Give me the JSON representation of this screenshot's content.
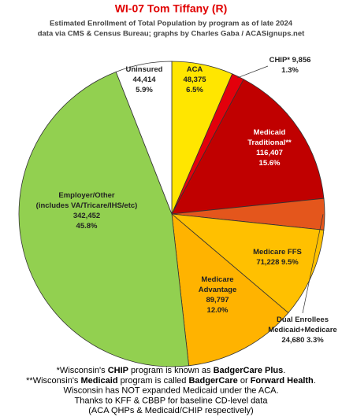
{
  "chart_data": {
    "type": "pie",
    "title": "WI-07 Tom Tiffany (R)",
    "subtitle": [
      "Estimated Enrollment of Total Population by program as of late 2024",
      "data via CMS & Census Bureau; graphs by Charles Gaba / ACASignups.net"
    ],
    "categories": [
      [
        "ACA"
      ],
      [
        "CHIP*"
      ],
      [
        "Medicaid",
        "Traditional**"
      ],
      [
        "Dual Enrollees",
        "Medicaid+Medicare"
      ],
      [
        "Medicare FFS"
      ],
      [
        "Medicare",
        "Advantage"
      ],
      [
        "Employer/Other",
        "(includes VA/Tricare/IHS/etc)"
      ],
      [
        "Uninsured"
      ]
    ],
    "values": [
      48375,
      9856,
      116407,
      24680,
      71228,
      89797,
      342452,
      44414
    ],
    "value_labels": [
      "48,375",
      "9,856",
      "116,407",
      "24,680",
      "71,228",
      "89,797",
      "342,452",
      "44,414"
    ],
    "percent_labels": [
      "6.5%",
      "1.3%",
      "15.6%",
      "3.3%",
      "9.5%",
      "12.0%",
      "45.8%",
      "5.9%"
    ],
    "colors": [
      "#ffe600",
      "#e3000b",
      "#c00000",
      "#e4561c",
      "#ffc000",
      "#ffb300",
      "#92d050",
      "#ffffff"
    ],
    "footnotes": [
      [
        {
          "text": "*Wisconsin's "
        },
        {
          "text": "CHIP",
          "bold": true
        },
        {
          "text": " program is known as "
        },
        {
          "text": "BadgerCare Plus",
          "bold": true
        },
        {
          "text": "."
        }
      ],
      [
        {
          "text": "**Wisconsin's "
        },
        {
          "text": "Medicaid",
          "bold": true
        },
        {
          "text": " program is called "
        },
        {
          "text": "BadgerCare",
          "bold": true
        },
        {
          "text": " or "
        },
        {
          "text": "Forward Health",
          "bold": true
        },
        {
          "text": "."
        }
      ],
      [
        {
          "text": "Wisconsin has NOT expanded Medicaid under the ACA."
        }
      ],
      [
        {
          "text": "Thanks to KFF & CBBP for baseline CD-level data"
        }
      ],
      [
        {
          "text": "(ACA QHPs & Medicaid/CHIP respectively)"
        }
      ]
    ]
  }
}
